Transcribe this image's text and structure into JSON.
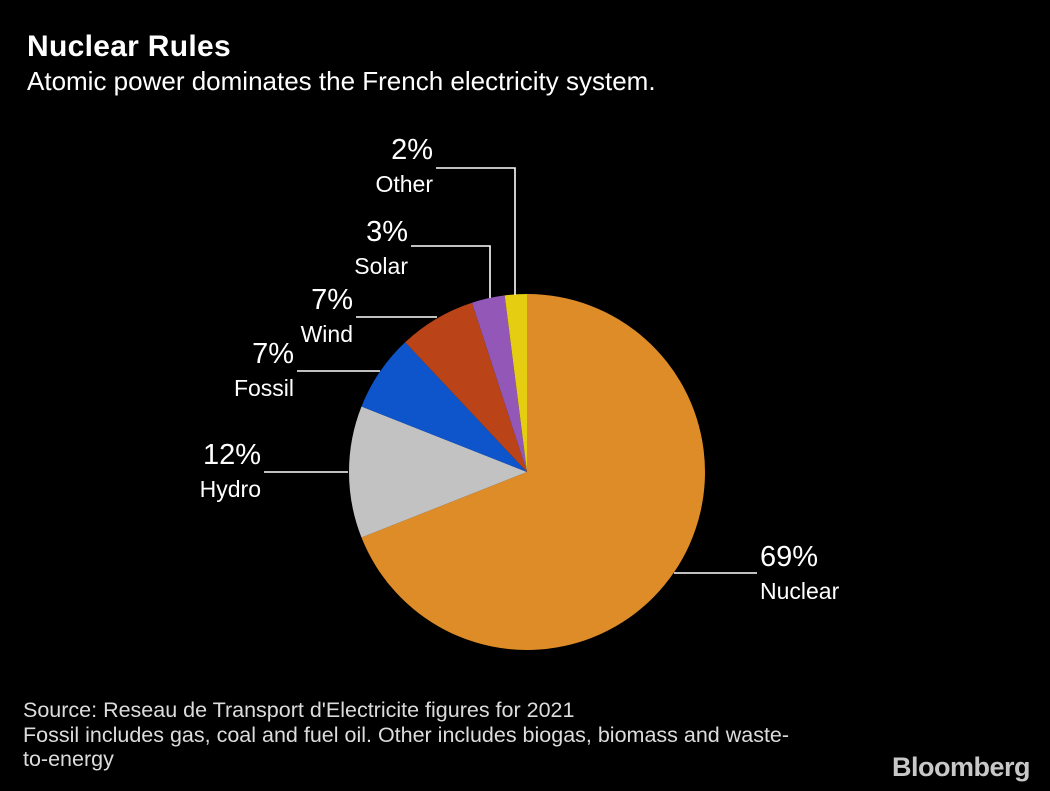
{
  "header": {
    "title": "Nuclear Rules",
    "subtitle": "Atomic power dominates the French electricity system."
  },
  "chart_data": {
    "type": "pie",
    "title": "Nuclear Rules",
    "subtitle": "Atomic power dominates the French electricity system.",
    "unit": "%",
    "start_angle": "12 o'clock",
    "direction": "clockwise",
    "background_color": "#000000",
    "label_color": "#ffffff",
    "leader_line_color": "#ffffff",
    "series": [
      {
        "name": "Nuclear",
        "value": 69,
        "pct_label": "69%",
        "color": "#de8c28"
      },
      {
        "name": "Hydro",
        "value": 12,
        "pct_label": "12%",
        "color": "#c2c2c2"
      },
      {
        "name": "Fossil",
        "value": 7,
        "pct_label": "7%",
        "color": "#0e55cb"
      },
      {
        "name": "Wind",
        "value": 7,
        "pct_label": "7%",
        "color": "#ba4418"
      },
      {
        "name": "Solar",
        "value": 3,
        "pct_label": "3%",
        "color": "#9257b7"
      },
      {
        "name": "Other",
        "value": 2,
        "pct_label": "2%",
        "color": "#e5ce12"
      }
    ]
  },
  "footer": {
    "source_line": "Source: Reseau de Transport d'Electricite figures for 2021",
    "note_line1": "Fossil includes gas, coal and fuel oil. Other includes biogas, biomass and waste-",
    "note_line2": "to-energy",
    "brand": "Bloomberg"
  }
}
